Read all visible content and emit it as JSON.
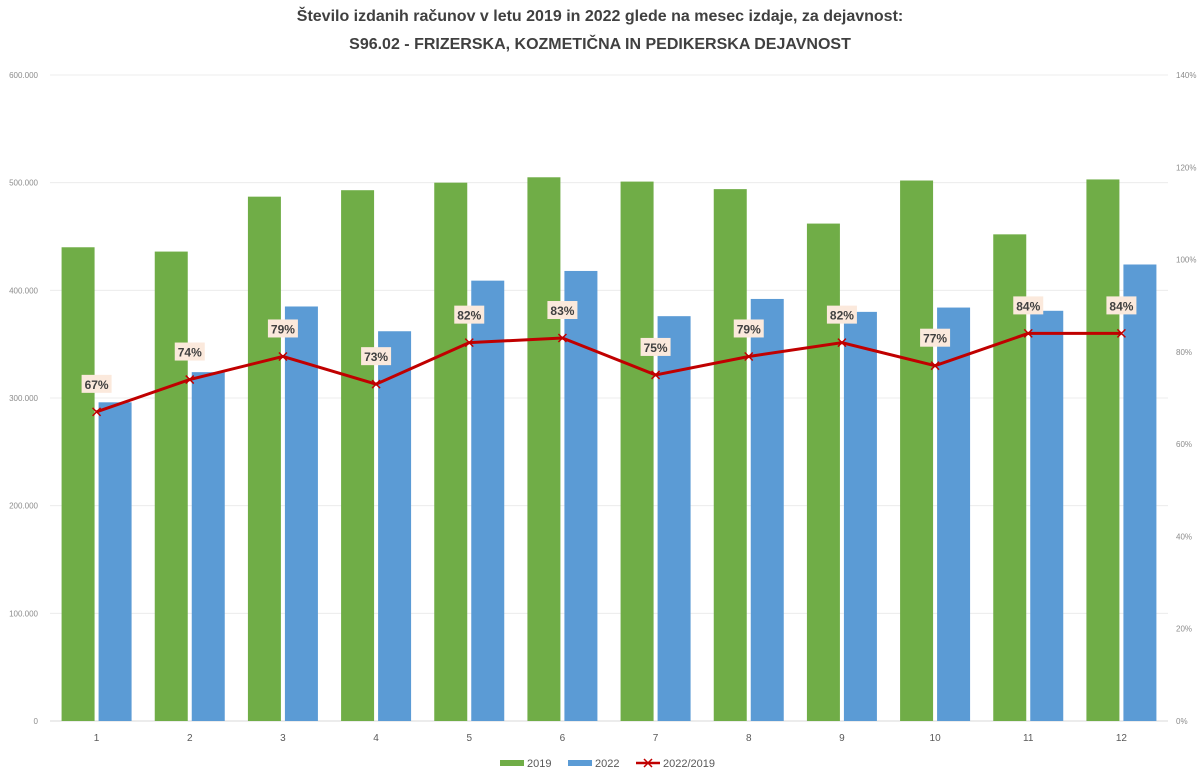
{
  "chart_data": {
    "type": "bar",
    "title": "Število izdanih računov v letu 2019 in 2022 glede na mesec izdaje, za dejavnost:",
    "subtitle": "S96.02 - FRIZERSKA, KOZMETIČNA IN PEDIKERSKA DEJAVNOST",
    "xlabel": "",
    "ylabel": "",
    "categories": [
      "1",
      "2",
      "3",
      "4",
      "5",
      "6",
      "7",
      "8",
      "9",
      "10",
      "11",
      "12"
    ],
    "series": [
      {
        "name": "2019",
        "type": "bar",
        "axis": "left",
        "color": "#70ad47",
        "values": [
          440000,
          436000,
          487000,
          493000,
          500000,
          505000,
          501000,
          494000,
          462000,
          502000,
          452000,
          503000
        ]
      },
      {
        "name": "2022",
        "type": "bar",
        "axis": "left",
        "color": "#5b9bd5",
        "values": [
          296000,
          324000,
          385000,
          362000,
          409000,
          418000,
          376000,
          392000,
          380000,
          384000,
          381000,
          424000
        ]
      },
      {
        "name": "2022/2019",
        "type": "line",
        "axis": "right",
        "color": "#c00000",
        "values": [
          67,
          74,
          79,
          73,
          82,
          83,
          75,
          79,
          82,
          77,
          84,
          84
        ],
        "labels": [
          "67%",
          "74%",
          "79%",
          "73%",
          "82%",
          "83%",
          "75%",
          "79%",
          "82%",
          "77%",
          "84%",
          "84%"
        ]
      }
    ],
    "ylim": [
      0,
      600000
    ],
    "y_ticks": [
      "0",
      "100.000",
      "200.000",
      "300.000",
      "400.000",
      "500.000",
      "600.000"
    ],
    "y2lim": [
      0,
      140
    ],
    "y2_ticks": [
      "0%",
      "20%",
      "40%",
      "60%",
      "80%",
      "100%",
      "120%",
      "140%"
    ],
    "grid": true,
    "legend_position": "bottom"
  }
}
